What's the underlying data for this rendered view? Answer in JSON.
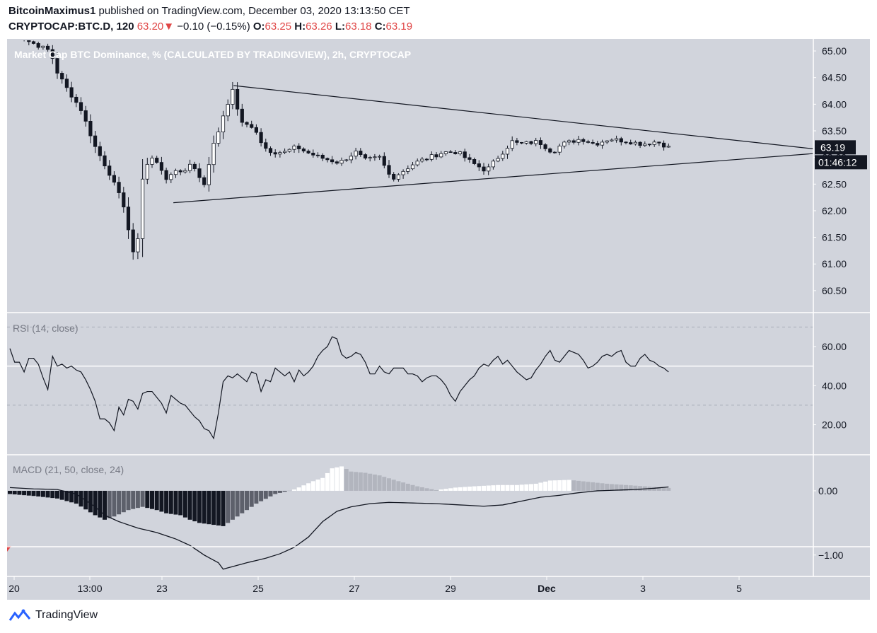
{
  "header": {
    "author": "BitcoinMaximus1",
    "published_text": "published on TradingView.com, December 03, 2020 13:13:50 CET",
    "symbol": "CRYPTOCAP:BTC.D, 120",
    "last": "63.20",
    "change": "−0.10 (−0.15%)",
    "o_label": "O:",
    "o": "63.25",
    "h_label": "H:",
    "h": "63.26",
    "l_label": "L:",
    "l": "63.18",
    "c_label": "C:",
    "c": "63.19"
  },
  "footer": {
    "brand": "TradingView"
  },
  "colors": {
    "background": "#d1d4dc",
    "panel_bg": "#ffffff",
    "down": "#e04646",
    "candle_up": "#ffffff",
    "candle_down": "#131722"
  },
  "chart_data": [
    {
      "type": "candlestick",
      "title": "Market Cap BTC Dominance, % (CALCULATED BY TRADINGVIEW), 2h, CRYPTOCAP",
      "ylim": [
        60.1,
        65.2
      ],
      "y_ticks": [
        "65.00",
        "64.50",
        "64.00",
        "63.50",
        "63.00",
        "62.50",
        "62.00",
        "61.50",
        "61.00",
        "60.50"
      ],
      "x_ticks": [
        "20",
        "13:00",
        "23",
        "25",
        "27",
        "29",
        "Dec",
        "3",
        "5"
      ],
      "last_price_label": "63.19",
      "countdown_label": "01:46:12",
      "close_anchors": [
        [
          0.0,
          65.6
        ],
        [
          4.0,
          65.2
        ],
        [
          9.0,
          65.0
        ],
        [
          10.5,
          64.6
        ],
        [
          12.5,
          64.3
        ],
        [
          15.5,
          63.9
        ],
        [
          18.5,
          63.2
        ],
        [
          21.5,
          62.7
        ],
        [
          24.5,
          62.1
        ],
        [
          26.7,
          61.1
        ],
        [
          27.5,
          61.5
        ],
        [
          28.5,
          62.6
        ],
        [
          30.0,
          63.0
        ],
        [
          32.0,
          62.9
        ],
        [
          33.7,
          62.5
        ],
        [
          35.0,
          62.8
        ],
        [
          37.0,
          62.7
        ],
        [
          38.5,
          62.9
        ],
        [
          40.0,
          62.7
        ],
        [
          41.5,
          62.5
        ],
        [
          43.0,
          63.1
        ],
        [
          44.5,
          63.5
        ],
        [
          46.5,
          64.0
        ],
        [
          47.5,
          64.3
        ],
        [
          49.0,
          63.7
        ],
        [
          50.5,
          63.6
        ],
        [
          52.5,
          63.5
        ],
        [
          54.0,
          63.2
        ],
        [
          56.0,
          63.1
        ],
        [
          58.5,
          63.1
        ],
        [
          61.0,
          63.2
        ],
        [
          63.0,
          63.1
        ],
        [
          66.0,
          63.0
        ],
        [
          70.0,
          62.9
        ],
        [
          73.5,
          63.1
        ],
        [
          75.5,
          62.95
        ],
        [
          78.5,
          63.0
        ],
        [
          81.0,
          62.6
        ],
        [
          83.5,
          62.75
        ],
        [
          86.0,
          62.9
        ],
        [
          89.0,
          63.0
        ],
        [
          92.0,
          63.1
        ],
        [
          95.0,
          63.1
        ],
        [
          98.0,
          62.9
        ],
        [
          101.0,
          62.75
        ],
        [
          104.0,
          63.05
        ],
        [
          106.5,
          63.3
        ],
        [
          108.0,
          63.25
        ],
        [
          112.0,
          63.3
        ],
        [
          115.0,
          63.1
        ],
        [
          117.0,
          63.25
        ],
        [
          121.0,
          63.35
        ],
        [
          124.0,
          63.25
        ],
        [
          127.0,
          63.35
        ],
        [
          131.0,
          63.3
        ],
        [
          134.0,
          63.25
        ],
        [
          137.0,
          63.3
        ],
        [
          139.5,
          63.19
        ]
      ],
      "trendlines": [
        {
          "from": [
            47.2,
            64.35
          ],
          "to": [
            175.0,
            63.11
          ]
        },
        {
          "from": [
            34.5,
            62.15
          ],
          "to": [
            175.0,
            63.11
          ]
        }
      ]
    },
    {
      "type": "line",
      "title": "RSI (14, close)",
      "ylim": [
        5,
        77
      ],
      "y_ticks": [
        "60.00",
        "40.00",
        "20.00"
      ],
      "levels": [
        70,
        50,
        30
      ],
      "values": [
        59,
        52,
        52,
        47,
        54,
        54,
        51,
        44,
        38,
        55,
        50,
        51,
        49,
        50,
        48,
        47,
        43,
        38,
        32,
        23,
        23,
        21,
        17,
        29,
        25,
        33,
        32,
        28,
        36,
        37,
        37,
        34,
        31,
        26,
        35,
        33,
        31,
        30,
        27,
        24,
        22,
        18,
        17,
        13,
        26,
        42,
        45,
        44,
        46,
        44,
        42,
        47,
        46,
        37,
        43,
        42,
        49,
        47,
        45,
        47,
        42,
        48,
        45,
        47,
        50,
        55,
        58,
        60,
        65,
        64,
        56,
        54,
        55,
        57,
        56,
        52,
        46,
        46,
        50,
        47,
        46,
        49,
        49,
        49,
        46,
        46,
        45,
        42,
        44,
        45,
        45,
        43,
        40,
        35,
        32,
        37,
        40,
        43,
        45,
        49,
        51,
        50,
        53,
        55,
        51,
        53,
        50,
        47,
        45,
        43,
        44,
        48,
        51,
        55,
        58,
        53,
        52,
        55,
        58,
        57,
        56,
        53,
        49,
        50,
        52,
        55,
        56,
        55,
        57,
        58,
        52,
        50,
        50,
        54,
        56,
        53,
        52,
        50,
        49,
        47
      ]
    },
    {
      "type": "line",
      "title": "MACD (21, 50, close, 24)",
      "ylim": [
        -1.3,
        0.55
      ],
      "y_ticks": [
        "0.00",
        "−1.00"
      ],
      "macd_anchors": [
        [
          0,
          0.05
        ],
        [
          5,
          0.03
        ],
        [
          10,
          0.02
        ],
        [
          14,
          -0.05
        ],
        [
          18,
          -0.25
        ],
        [
          20,
          -0.38
        ],
        [
          23,
          -0.48
        ],
        [
          27,
          -0.58
        ],
        [
          31,
          -0.65
        ],
        [
          35,
          -0.75
        ],
        [
          38,
          -0.85
        ],
        [
          41,
          -1.0
        ],
        [
          44,
          -1.12
        ],
        [
          45,
          -1.22
        ],
        [
          47,
          -1.18
        ],
        [
          50,
          -1.12
        ],
        [
          54,
          -1.05
        ],
        [
          57,
          -0.98
        ],
        [
          60,
          -0.88
        ],
        [
          63,
          -0.72
        ],
        [
          66,
          -0.48
        ],
        [
          69,
          -0.32
        ],
        [
          72,
          -0.25
        ],
        [
          76,
          -0.2
        ],
        [
          80,
          -0.18
        ],
        [
          85,
          -0.19
        ],
        [
          90,
          -0.2
        ],
        [
          95,
          -0.22
        ],
        [
          100,
          -0.24
        ],
        [
          104,
          -0.22
        ],
        [
          108,
          -0.16
        ],
        [
          112,
          -0.1
        ],
        [
          116,
          -0.07
        ],
        [
          120,
          -0.03
        ],
        [
          124,
          0.0
        ],
        [
          128,
          0.01
        ],
        [
          132,
          0.02
        ],
        [
          136,
          0.04
        ],
        [
          139,
          0.06
        ],
        [
          140,
          0.04
        ]
      ],
      "hist_anchors": [
        [
          0,
          -0.05
        ],
        [
          5,
          -0.08
        ],
        [
          10,
          -0.12
        ],
        [
          14,
          -0.2
        ],
        [
          18,
          -0.38
        ],
        [
          20,
          -0.45
        ],
        [
          22,
          -0.4
        ],
        [
          25,
          -0.3
        ],
        [
          28,
          -0.25
        ],
        [
          31,
          -0.3
        ],
        [
          33,
          -0.35
        ],
        [
          36,
          -0.38
        ],
        [
          38,
          -0.45
        ],
        [
          40,
          -0.5
        ],
        [
          42,
          -0.52
        ],
        [
          45,
          -0.55
        ],
        [
          48,
          -0.4
        ],
        [
          52,
          -0.2
        ],
        [
          56,
          -0.05
        ],
        [
          60,
          0.02
        ],
        [
          64,
          0.15
        ],
        [
          66,
          0.2
        ],
        [
          68,
          0.35
        ],
        [
          70,
          0.38
        ],
        [
          72,
          0.3
        ],
        [
          75,
          0.28
        ],
        [
          78,
          0.24
        ],
        [
          82,
          0.15
        ],
        [
          86,
          0.07
        ],
        [
          90,
          0.01
        ],
        [
          94,
          0.05
        ],
        [
          98,
          0.07
        ],
        [
          103,
          0.09
        ],
        [
          107,
          0.09
        ],
        [
          111,
          0.11
        ],
        [
          114,
          0.16
        ],
        [
          118,
          0.17
        ],
        [
          122,
          0.14
        ],
        [
          126,
          0.11
        ],
        [
          130,
          0.09
        ],
        [
          134,
          0.07
        ],
        [
          138,
          0.05
        ],
        [
          140,
          0.04
        ]
      ]
    }
  ]
}
